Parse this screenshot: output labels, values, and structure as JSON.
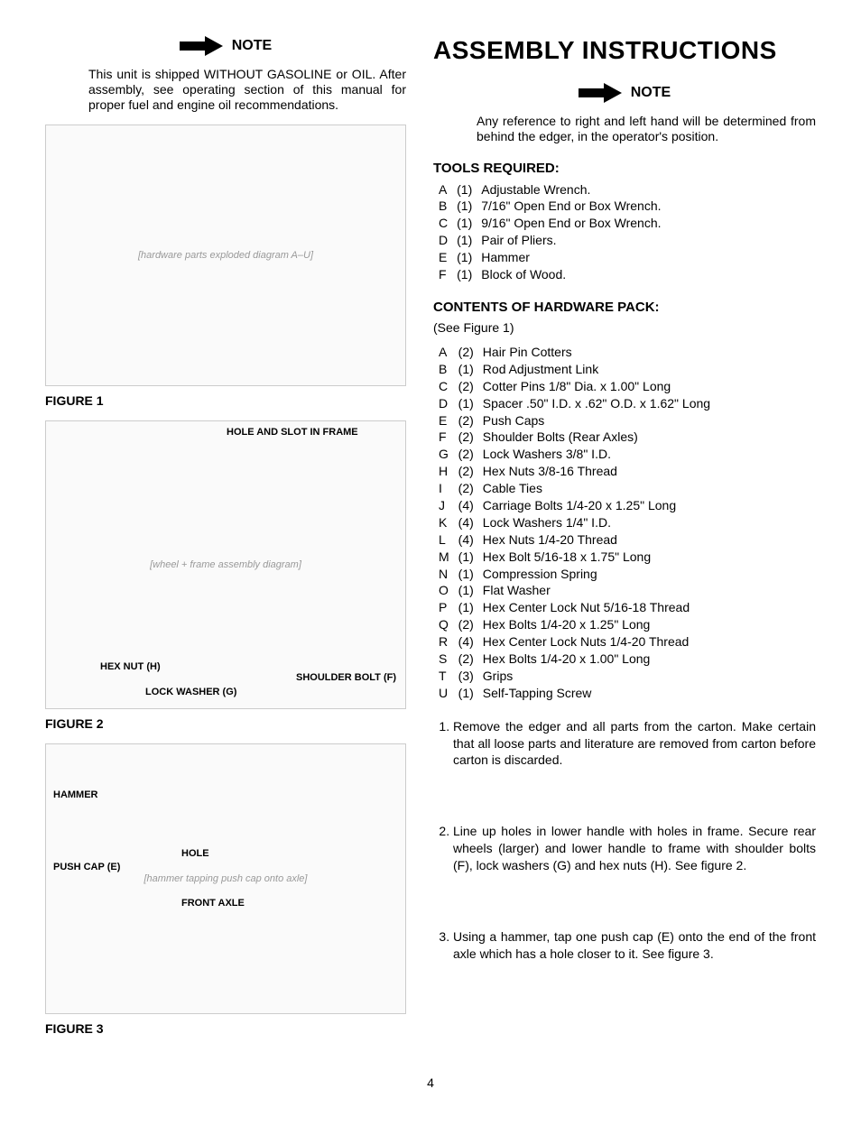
{
  "main_title": "ASSEMBLY INSTRUCTIONS",
  "note_label": "NOTE",
  "left_note_text": "This unit is shipped WITHOUT GASOLINE or OIL. After assembly, see operating section of this manual for proper fuel and engine oil recommendations.",
  "right_note_text": "Any reference to right and left hand will be determined from behind the edger, in the operator's position.",
  "tools_title": "TOOLS REQUIRED:",
  "tools": [
    {
      "letter": "A",
      "qty": "(1)",
      "desc": "Adjustable Wrench."
    },
    {
      "letter": "B",
      "qty": "(1)",
      "desc": "7/16\" Open End or Box Wrench."
    },
    {
      "letter": "C",
      "qty": "(1)",
      "desc": "9/16\" Open End or Box Wrench."
    },
    {
      "letter": "D",
      "qty": "(1)",
      "desc": "Pair of Pliers."
    },
    {
      "letter": "E",
      "qty": "(1)",
      "desc": "Hammer"
    },
    {
      "letter": "F",
      "qty": "(1)",
      "desc": "Block of Wood."
    }
  ],
  "hardware_title": "CONTENTS OF HARDWARE PACK:",
  "see_figure": "(See Figure 1)",
  "hardware": [
    {
      "letter": "A",
      "qty": "(2)",
      "desc": "Hair Pin Cotters"
    },
    {
      "letter": "B",
      "qty": "(1)",
      "desc": "Rod Adjustment Link"
    },
    {
      "letter": "C",
      "qty": "(2)",
      "desc": "Cotter Pins 1/8\" Dia. x 1.00\" Long"
    },
    {
      "letter": "D",
      "qty": "(1)",
      "desc": "Spacer .50\" I.D. x .62\" O.D. x 1.62\" Long"
    },
    {
      "letter": "E",
      "qty": "(2)",
      "desc": "Push Caps"
    },
    {
      "letter": "F",
      "qty": "(2)",
      "desc": "Shoulder Bolts (Rear Axles)"
    },
    {
      "letter": "G",
      "qty": "(2)",
      "desc": "Lock Washers 3/8\" I.D."
    },
    {
      "letter": "H",
      "qty": "(2)",
      "desc": "Hex Nuts 3/8-16 Thread"
    },
    {
      "letter": "I",
      "qty": "(2)",
      "desc": "Cable Ties"
    },
    {
      "letter": "J",
      "qty": "(4)",
      "desc": "Carriage Bolts 1/4-20 x 1.25\" Long"
    },
    {
      "letter": "K",
      "qty": "(4)",
      "desc": "Lock Washers 1/4\" I.D."
    },
    {
      "letter": "L",
      "qty": "(4)",
      "desc": "Hex Nuts 1/4-20 Thread"
    },
    {
      "letter": "M",
      "qty": "(1)",
      "desc": "Hex Bolt 5/16-18 x 1.75\" Long"
    },
    {
      "letter": "N",
      "qty": "(1)",
      "desc": "Compression Spring"
    },
    {
      "letter": "O",
      "qty": "(1)",
      "desc": "Flat Washer"
    },
    {
      "letter": "P",
      "qty": "(1)",
      "desc": "Hex Center Lock Nut 5/16-18 Thread"
    },
    {
      "letter": "Q",
      "qty": "(2)",
      "desc": "Hex Bolts 1/4-20 x 1.25\" Long"
    },
    {
      "letter": "R",
      "qty": "(4)",
      "desc": "Hex Center Lock Nuts 1/4-20 Thread"
    },
    {
      "letter": "S",
      "qty": "(2)",
      "desc": "Hex Bolts 1/4-20 x 1.00\" Long"
    },
    {
      "letter": "T",
      "qty": "(3)",
      "desc": "Grips"
    },
    {
      "letter": "U",
      "qty": "(1)",
      "desc": "Self-Tapping Screw"
    }
  ],
  "steps": [
    "Remove the edger and all parts from the carton. Make certain that all loose parts and literature are removed from carton before carton is discarded.",
    "Line up holes in lower handle with holes in frame. Secure rear wheels (larger) and lower handle to frame with shoulder bolts (F), lock washers (G) and hex nuts (H). See figure 2.",
    "Using a hammer, tap one push cap (E) onto the end of the front axle which has a hole closer to it. See figure 3."
  ],
  "fig1_label": "FIGURE 1",
  "fig2_label": "FIGURE 2",
  "fig3_label": "FIGURE 3",
  "fig1_callouts": {
    "hole_slot": "HOLE AND SLOT IN FRAME"
  },
  "fig2_callouts": {
    "hex_nut": "HEX NUT (H)",
    "lock_washer": "LOCK WASHER (G)",
    "shoulder_bolt": "SHOULDER BOLT (F)"
  },
  "fig3_callouts": {
    "hammer": "HAMMER",
    "push_cap": "PUSH CAP (E)",
    "hole": "HOLE",
    "front_axle": "FRONT AXLE"
  },
  "page_number": "4",
  "arrow_color": "#000000"
}
